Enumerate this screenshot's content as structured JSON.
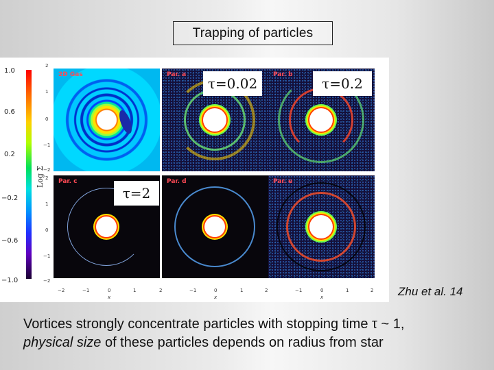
{
  "slide": {
    "title": "Trapping of particles",
    "citation": "Zhu et al. 14",
    "caption": {
      "line1": "Vortices strongly concentrate particles with stopping time τ ~ 1,",
      "line2_italic": "physical size",
      "line2_rest": " of these particles depends on radius from star"
    }
  },
  "figure": {
    "colorbar": {
      "ticks": [
        "1.0",
        "0.6",
        "0.2",
        "−0.2",
        "−0.6",
        "−1.0"
      ],
      "label": "Log Σ"
    },
    "panel_labels": {
      "gas": "2D Gas",
      "a": "Par. a",
      "b": "Par. b",
      "c": "Par. c",
      "d": "Par. d",
      "e": "Par. e"
    },
    "tau_labels": {
      "t1": "τ=0.02",
      "t2": "τ=0.2",
      "t3": "τ=2"
    },
    "yticks": [
      "2",
      "1",
      "0",
      "−1",
      "−2"
    ],
    "xticks": [
      "−2",
      "−1",
      "0",
      "1",
      "2"
    ],
    "xlabel": "x"
  },
  "colors": {
    "background": "#e8e8e8",
    "panel_label": "#ff4a55",
    "dust_background": "#14103a"
  }
}
